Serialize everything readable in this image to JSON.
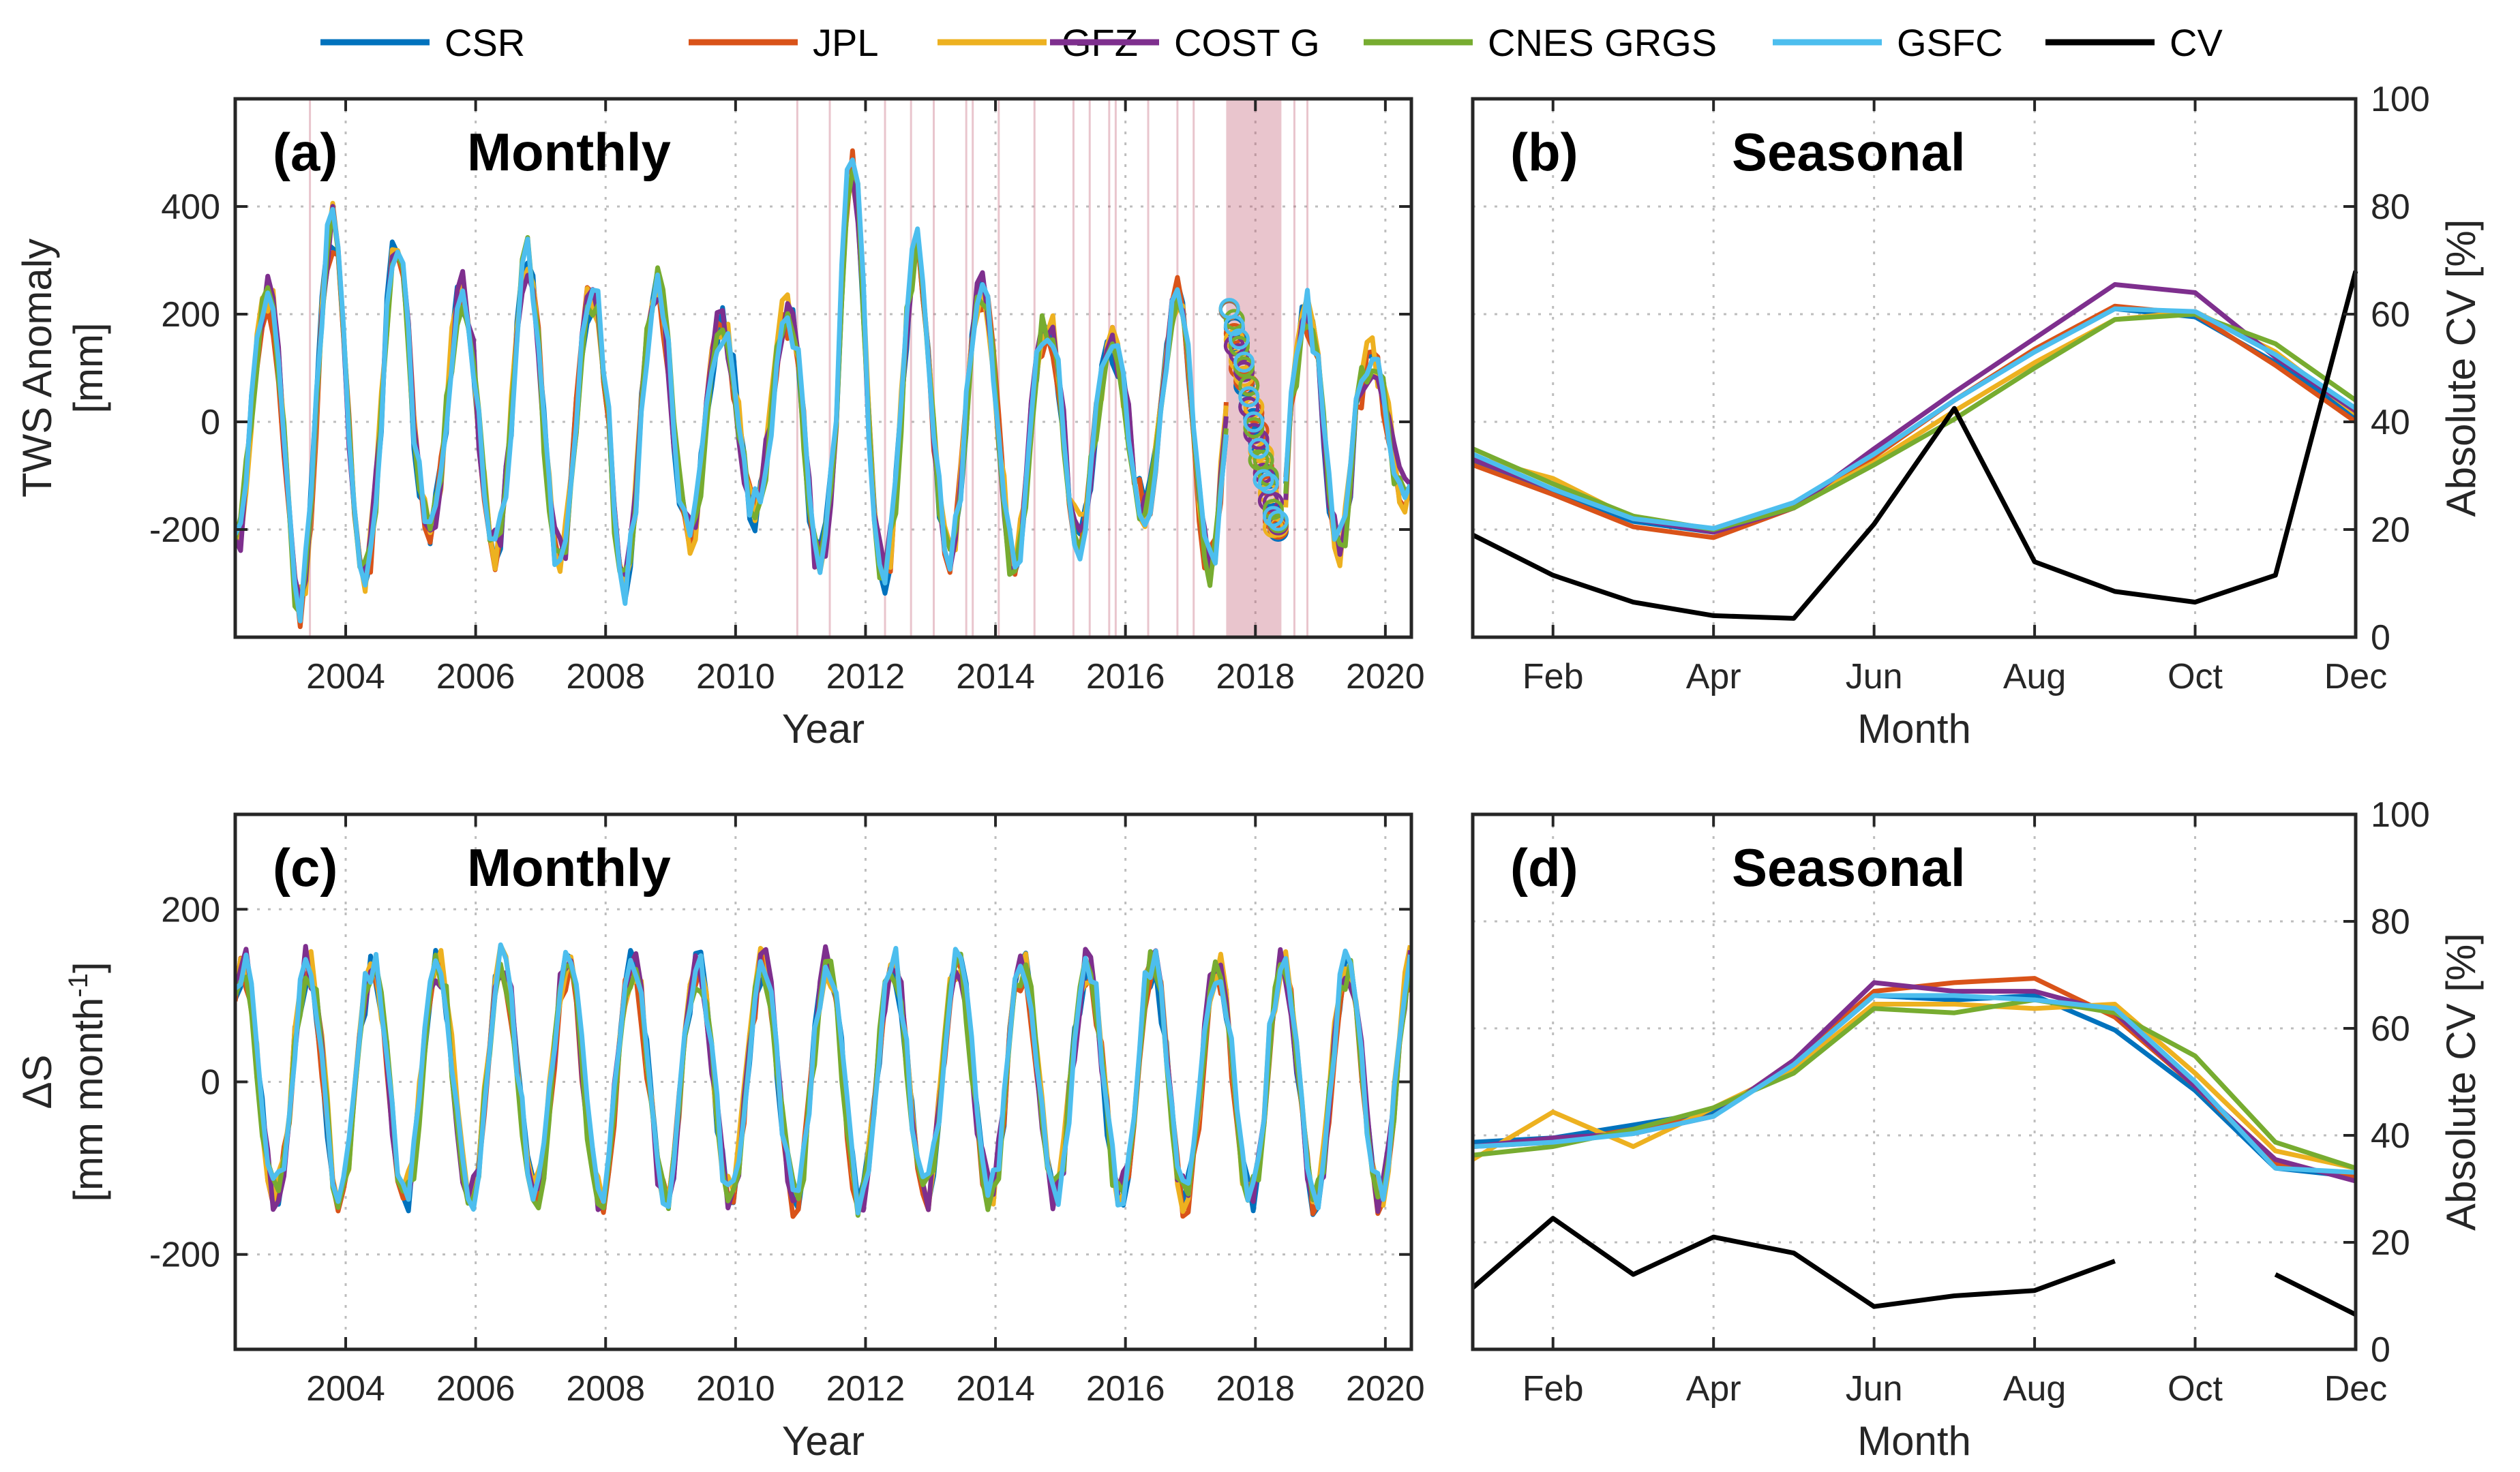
{
  "legend": [
    {
      "name": "CSR",
      "color": "#0072BD"
    },
    {
      "name": "JPL",
      "color": "#D95319"
    },
    {
      "name": "GFZ",
      "color": "#EDB120"
    },
    {
      "name": "COST G",
      "color": "#7E2F8E"
    },
    {
      "name": "CNES GRGS",
      "color": "#77AC30"
    },
    {
      "name": "GSFC",
      "color": "#4DBEEE"
    },
    {
      "name": "CV",
      "color": "#000000"
    }
  ],
  "gap_color": "#C0596F",
  "chart_data": [
    {
      "id": "a",
      "type": "line",
      "panel_label": "(a)",
      "title": "Monthly",
      "xlabel": "Year",
      "ylabel": "TWS Anomaly",
      "ylabel2": "[mm]",
      "xlim": [
        2002.3,
        2020.4
      ],
      "ylim": [
        -400,
        600
      ],
      "xticks": [
        2004,
        2006,
        2008,
        2010,
        2012,
        2014,
        2016,
        2018,
        2020
      ],
      "xticklabels": [
        "2004",
        "2006",
        "2008",
        "2010",
        "2012",
        "2014",
        "2016",
        "2018",
        "2020"
      ],
      "yticks": [
        -200,
        0,
        200,
        400
      ],
      "yticklabels": [
        "-200",
        "0",
        "200",
        "400"
      ],
      "grid": true,
      "missing_months": [
        2003.45,
        2010.95,
        2011.45,
        2012.3,
        2012.7,
        2013.05,
        2013.55,
        2013.65,
        2014.05,
        2014.6,
        2015.2,
        2015.45,
        2015.75,
        2015.85,
        2016.35,
        2016.8,
        2017.05,
        2018.6,
        2018.8
      ],
      "gap_span": [
        2017.55,
        2018.4
      ],
      "series_params": {
        "mean": 0,
        "amp": 240,
        "peak_month": 9.5,
        "peak_boost": {
          "2003": 120,
          "2004": 110,
          "2005": 0,
          "2006": 70,
          "2007": 0,
          "2008": 10,
          "2009": -60,
          "2010": -40,
          "2011": 240,
          "2012": 80,
          "2013": 10,
          "2014": -60,
          "2015": -100,
          "2016": 0,
          "2017": -60,
          "2018": -40,
          "2019": -120,
          "2020": 0
        },
        "trough_boost": {
          "2003": 100,
          "2004": 40,
          "2005": -40,
          "2006": 0,
          "2007": 20,
          "2008": 60,
          "2009": -20,
          "2010": -70,
          "2011": 30,
          "2012": 40,
          "2013": 10,
          "2014": 30,
          "2015": -20,
          "2016": -80,
          "2017": 30,
          "2018": 40,
          "2019": 0,
          "2020": -100
        },
        "offsets": {
          "CSR": [
            0,
            0.1
          ],
          "JPL": [
            -0.12,
            0.3
          ],
          "GFZ": [
            0.15,
            0.5
          ],
          "COST G": [
            0.08,
            0.7
          ],
          "CNES GRGS": [
            -0.05,
            0.9
          ],
          "GSFC": [
            0.1,
            1.1
          ]
        }
      }
    },
    {
      "id": "b",
      "type": "line",
      "panel_label": "(b)",
      "title": "Seasonal",
      "xlabel": "Month",
      "ylabel_right": "Absolute CV [%]",
      "xlim": [
        1,
        12
      ],
      "ylim": [
        -400,
        600
      ],
      "ylim_right": [
        0,
        100
      ],
      "xticks": [
        2,
        4,
        6,
        8,
        10,
        12
      ],
      "xticklabels": [
        "Feb",
        "Apr",
        "Jun",
        "Aug",
        "Oct",
        "Dec"
      ],
      "yticks_right": [
        0,
        20,
        40,
        60,
        80,
        100
      ],
      "yticklabels_right": [
        "0",
        "20",
        "40",
        "60",
        "80",
        "100"
      ],
      "grid": true,
      "x": [
        1,
        2,
        3,
        4,
        5,
        6,
        7,
        8,
        9,
        10,
        11,
        12
      ],
      "series": [
        {
          "name": "CSR",
          "values": [
            -75,
            -130,
            -185,
            -205,
            -155,
            -60,
            40,
            130,
            210,
            195,
            110,
            10
          ]
        },
        {
          "name": "JPL",
          "values": [
            -80,
            -135,
            -195,
            -215,
            -160,
            -65,
            40,
            135,
            215,
            200,
            105,
            0
          ]
        },
        {
          "name": "GFZ",
          "values": [
            -65,
            -105,
            -180,
            -200,
            -155,
            -75,
            20,
            110,
            190,
            205,
            130,
            15
          ]
        },
        {
          "name": "COST G",
          "values": [
            -70,
            -125,
            -180,
            -205,
            -160,
            -50,
            55,
            155,
            255,
            240,
            120,
            20
          ]
        },
        {
          "name": "CNES GRGS",
          "values": [
            -50,
            -115,
            -175,
            -200,
            -160,
            -80,
            5,
            100,
            190,
            200,
            145,
            40
          ]
        },
        {
          "name": "GSFC",
          "values": [
            -60,
            -125,
            -180,
            -198,
            -150,
            -60,
            40,
            130,
            210,
            205,
            125,
            25
          ]
        }
      ],
      "cv": {
        "name": "CV",
        "x": [
          1,
          2,
          3,
          4,
          5,
          6,
          7,
          8,
          9,
          10,
          11,
          12
        ],
        "values": [
          19,
          11.5,
          6.5,
          4,
          3.5,
          21,
          42.5,
          14,
          8.5,
          6.5,
          11.5,
          68
        ]
      }
    },
    {
      "id": "c",
      "type": "line",
      "panel_label": "(c)",
      "title": "Monthly",
      "xlabel": "Year",
      "ylabel": "ΔS",
      "ylabel2": "[mm month",
      "ylabel2_sup": "-1",
      "ylabel2_end": "]",
      "xlim": [
        2002.3,
        2020.4
      ],
      "ylim": [
        -310,
        310
      ],
      "xticks": [
        2004,
        2006,
        2008,
        2010,
        2012,
        2014,
        2016,
        2018,
        2020
      ],
      "xticklabels": [
        "2004",
        "2006",
        "2008",
        "2010",
        "2012",
        "2014",
        "2016",
        "2018",
        "2020"
      ],
      "yticks": [
        -200,
        0,
        200
      ],
      "yticklabels": [
        "-200",
        "0",
        "200"
      ],
      "grid": true,
      "series_params": {
        "mean": 0,
        "amp": 135,
        "peak_month": 5.0,
        "offsets": {
          "CSR": [
            0,
            0.2
          ],
          "JPL": [
            -0.1,
            0.4
          ],
          "GFZ": [
            0.12,
            0.6
          ],
          "COST G": [
            0.06,
            0.8
          ],
          "CNES GRGS": [
            -0.06,
            1.0
          ],
          "GSFC": [
            0.09,
            1.2
          ]
        }
      }
    },
    {
      "id": "d",
      "type": "line",
      "panel_label": "(d)",
      "title": "Seasonal",
      "xlabel": "Month",
      "ylabel_right": "Absolute CV [%]",
      "xlim": [
        1,
        12
      ],
      "ylim": [
        -310,
        310
      ],
      "ylim_right": [
        0,
        100
      ],
      "xticks": [
        2,
        4,
        6,
        8,
        10,
        12
      ],
      "xticklabels": [
        "Feb",
        "Apr",
        "Jun",
        "Aug",
        "Oct",
        "Dec"
      ],
      "yticks_right": [
        0,
        20,
        40,
        60,
        80,
        100
      ],
      "yticklabels_right": [
        "0",
        "20",
        "40",
        "60",
        "80",
        "100"
      ],
      "grid": true,
      "x": [
        1,
        2,
        3,
        4,
        5,
        6,
        7,
        8,
        9,
        10,
        11,
        12
      ],
      "series": [
        {
          "name": "CSR",
          "values": [
            -70,
            -65,
            -50,
            -35,
            20,
            100,
            95,
            100,
            60,
            -10,
            -100,
            -110
          ]
        },
        {
          "name": "JPL",
          "values": [
            -75,
            -70,
            -55,
            -40,
            25,
            105,
            115,
            120,
            75,
            -5,
            -95,
            -110
          ]
        },
        {
          "name": "GFZ",
          "values": [
            -90,
            -35,
            -75,
            -30,
            15,
            90,
            90,
            85,
            90,
            10,
            -80,
            -100
          ]
        },
        {
          "name": "COST G",
          "values": [
            -75,
            -65,
            -60,
            -40,
            25,
            115,
            105,
            105,
            80,
            -5,
            -90,
            -115
          ]
        },
        {
          "name": "CNES GRGS",
          "values": [
            -85,
            -75,
            -55,
            -30,
            10,
            85,
            80,
            95,
            80,
            30,
            -70,
            -100
          ]
        },
        {
          "name": "GSFC",
          "values": [
            -75,
            -70,
            -60,
            -40,
            20,
            100,
            100,
            95,
            85,
            0,
            -100,
            -105
          ]
        }
      ],
      "cv": {
        "name": "CV",
        "x": [
          1,
          2,
          3,
          4,
          5,
          6,
          7,
          8,
          9,
          11,
          12
        ],
        "values": [
          11.5,
          24.5,
          14,
          21,
          18,
          8,
          10,
          11,
          16.5,
          14,
          6.5
        ]
      }
    }
  ]
}
